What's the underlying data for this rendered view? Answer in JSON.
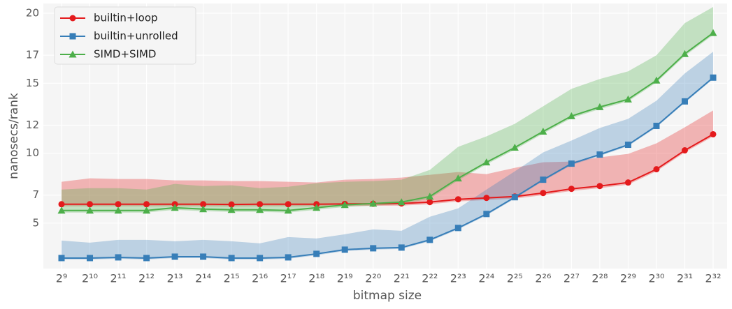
{
  "chart_data": {
    "type": "line",
    "xlabel": "bitmap size",
    "ylabel": "nanosecs/rank",
    "categories": [
      "2⁹",
      "2¹⁰",
      "2¹¹",
      "2¹²",
      "2¹³",
      "2¹⁴",
      "2¹⁵",
      "2¹⁶",
      "2¹⁷",
      "2¹⁸",
      "2¹⁹",
      "2²⁰",
      "2²¹",
      "2²²",
      "2²³",
      "2²⁴",
      "2²⁵",
      "2²⁶",
      "2²⁷",
      "2²⁸",
      "2²⁹",
      "2³⁰",
      "2³¹",
      "2³²"
    ],
    "ylim": [
      1.75,
      20.7
    ],
    "yticks": [
      5,
      7,
      10,
      12,
      15,
      17,
      20
    ],
    "grid": true,
    "legend": "upper left",
    "series": [
      {
        "name": "builtin+loop",
        "color": "#e41a1c",
        "marker": "circle",
        "values": [
          6.35,
          6.35,
          6.35,
          6.35,
          6.35,
          6.35,
          6.33,
          6.35,
          6.35,
          6.35,
          6.37,
          6.38,
          6.4,
          6.5,
          6.7,
          6.8,
          6.9,
          7.15,
          7.45,
          7.65,
          7.9,
          8.85,
          10.2,
          11.35
        ],
        "lower": [
          6.2,
          6.2,
          6.2,
          6.2,
          6.2,
          6.2,
          6.18,
          6.2,
          6.2,
          6.2,
          6.22,
          6.23,
          6.25,
          6.35,
          6.55,
          6.65,
          6.75,
          7.0,
          7.3,
          7.5,
          7.75,
          8.7,
          10.05,
          11.2
        ],
        "upper": [
          7.95,
          8.2,
          8.15,
          8.15,
          8.05,
          8.05,
          8.0,
          8.0,
          7.95,
          7.9,
          8.1,
          8.15,
          8.25,
          8.45,
          8.65,
          8.5,
          8.95,
          9.35,
          9.4,
          9.7,
          9.95,
          10.7,
          11.85,
          13.05
        ]
      },
      {
        "name": "builtin+unrolled",
        "color": "#377eb8",
        "marker": "square",
        "values": [
          2.5,
          2.5,
          2.55,
          2.5,
          2.6,
          2.6,
          2.5,
          2.5,
          2.55,
          2.8,
          3.1,
          3.2,
          3.25,
          3.8,
          4.65,
          5.65,
          6.85,
          8.1,
          9.25,
          9.9,
          10.6,
          11.95,
          13.7,
          15.4
        ],
        "lower": [
          2.4,
          2.4,
          2.45,
          2.4,
          2.5,
          2.5,
          2.4,
          2.4,
          2.45,
          2.7,
          3.0,
          3.1,
          3.15,
          3.7,
          4.55,
          5.55,
          6.75,
          8.0,
          9.15,
          9.8,
          10.5,
          11.85,
          13.6,
          15.3
        ],
        "upper": [
          3.75,
          3.6,
          3.8,
          3.8,
          3.7,
          3.8,
          3.7,
          3.55,
          4.0,
          3.9,
          4.2,
          4.55,
          4.45,
          5.45,
          6.05,
          7.4,
          8.7,
          10.05,
          10.9,
          11.8,
          12.45,
          13.75,
          15.7,
          17.25
        ]
      },
      {
        "name": "SIMD+SIMD",
        "color": "#4daf4a",
        "marker": "triangle",
        "values": [
          5.9,
          5.9,
          5.9,
          5.9,
          6.1,
          6.0,
          5.95,
          5.95,
          5.9,
          6.1,
          6.3,
          6.4,
          6.5,
          6.9,
          8.2,
          9.35,
          10.4,
          11.55,
          12.65,
          13.3,
          13.85,
          15.2,
          17.1,
          18.6
        ],
        "lower": [
          5.75,
          5.75,
          5.75,
          5.75,
          5.95,
          5.85,
          5.8,
          5.8,
          5.75,
          5.95,
          6.15,
          6.25,
          6.35,
          6.75,
          8.05,
          9.2,
          10.25,
          11.4,
          12.5,
          13.15,
          13.7,
          15.05,
          16.95,
          18.45
        ],
        "upper": [
          7.4,
          7.5,
          7.5,
          7.4,
          7.8,
          7.65,
          7.7,
          7.5,
          7.6,
          7.85,
          7.95,
          8.0,
          8.1,
          8.8,
          10.45,
          11.2,
          12.1,
          13.35,
          14.6,
          15.3,
          15.85,
          17.0,
          19.3,
          20.45
        ]
      }
    ]
  }
}
